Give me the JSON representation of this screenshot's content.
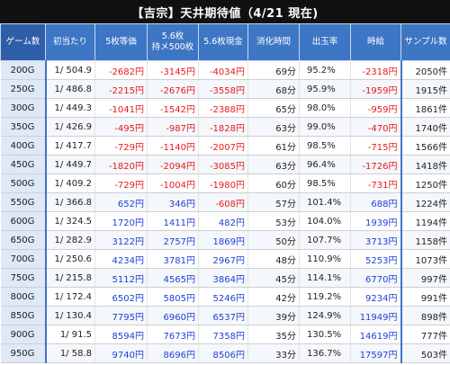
{
  "title": "【吉宗】天井期待値（4/21 現在)",
  "headers": {
    "game": "ゲーム数",
    "rate": "初当たり",
    "v5": "5枚等価",
    "v56_line1": "5.6枚",
    "v56_line2": "持メ500枚",
    "v56cash": "5.6枚現金",
    "time": "消化時間",
    "payout": "出玉率",
    "hourly": "時給",
    "samples": "サンプル数"
  },
  "colors": {
    "header": "#3d76c4",
    "negative": "#e8191b",
    "positive": "#1f3fd6"
  },
  "rows": [
    {
      "game": "200G",
      "rate": "1/ 504.9",
      "v5": "-2682円",
      "v56": "-3145円",
      "v56c": "-4034円",
      "time": "69分",
      "payout": "95.2%",
      "hourly": "-2318円",
      "samples": "2050件"
    },
    {
      "game": "250G",
      "rate": "1/ 486.8",
      "v5": "-2215円",
      "v56": "-2676円",
      "v56c": "-3558円",
      "time": "68分",
      "payout": "95.9%",
      "hourly": "-1959円",
      "samples": "1915件"
    },
    {
      "game": "300G",
      "rate": "1/ 449.3",
      "v5": "-1041円",
      "v56": "-1542円",
      "v56c": "-2388円",
      "time": "65分",
      "payout": "98.0%",
      "hourly": "-959円",
      "samples": "1861件"
    },
    {
      "game": "350G",
      "rate": "1/ 426.9",
      "v5": "-495円",
      "v56": "-987円",
      "v56c": "-1828円",
      "time": "63分",
      "payout": "99.0%",
      "hourly": "-470円",
      "samples": "1740件"
    },
    {
      "game": "400G",
      "rate": "1/ 417.7",
      "v5": "-729円",
      "v56": "-1140円",
      "v56c": "-2007円",
      "time": "61分",
      "payout": "98.5%",
      "hourly": "-715円",
      "samples": "1566件"
    },
    {
      "game": "450G",
      "rate": "1/ 449.7",
      "v5": "-1820円",
      "v56": "-2094円",
      "v56c": "-3085円",
      "time": "63分",
      "payout": "96.4%",
      "hourly": "-1726円",
      "samples": "1418件"
    },
    {
      "game": "500G",
      "rate": "1/ 409.2",
      "v5": "-729円",
      "v56": "-1004円",
      "v56c": "-1980円",
      "time": "60分",
      "payout": "98.5%",
      "hourly": "-731円",
      "samples": "1250件"
    },
    {
      "game": "550G",
      "rate": "1/ 366.8",
      "v5": "652円",
      "v56": "346円",
      "v56c": "-608円",
      "time": "57分",
      "payout": "101.4%",
      "hourly": "688円",
      "samples": "1224件"
    },
    {
      "game": "600G",
      "rate": "1/ 324.5",
      "v5": "1720円",
      "v56": "1411円",
      "v56c": "482円",
      "time": "53分",
      "payout": "104.0%",
      "hourly": "1939円",
      "samples": "1194件"
    },
    {
      "game": "650G",
      "rate": "1/ 282.9",
      "v5": "3122円",
      "v56": "2757円",
      "v56c": "1869円",
      "time": "50分",
      "payout": "107.7%",
      "hourly": "3713円",
      "samples": "1158件"
    },
    {
      "game": "700G",
      "rate": "1/ 250.6",
      "v5": "4234円",
      "v56": "3781円",
      "v56c": "2967円",
      "time": "48分",
      "payout": "110.9%",
      "hourly": "5253円",
      "samples": "1073件"
    },
    {
      "game": "750G",
      "rate": "1/ 215.8",
      "v5": "5112円",
      "v56": "4565円",
      "v56c": "3864円",
      "time": "45分",
      "payout": "114.1%",
      "hourly": "6770円",
      "samples": "997件"
    },
    {
      "game": "800G",
      "rate": "1/ 172.4",
      "v5": "6502円",
      "v56": "5805円",
      "v56c": "5246円",
      "time": "42分",
      "payout": "119.2%",
      "hourly": "9234円",
      "samples": "991件"
    },
    {
      "game": "850G",
      "rate": "1/ 130.4",
      "v5": "7795円",
      "v56": "6960円",
      "v56c": "6537円",
      "time": "39分",
      "payout": "124.9%",
      "hourly": "11949円",
      "samples": "898件"
    },
    {
      "game": "900G",
      "rate": "1/ 91.5",
      "v5": "8594円",
      "v56": "7673円",
      "v56c": "7358円",
      "time": "35分",
      "payout": "130.5%",
      "hourly": "14619円",
      "samples": "777件"
    },
    {
      "game": "950G",
      "rate": "1/ 58.8",
      "v5": "9740円",
      "v56": "8696円",
      "v56c": "8506円",
      "time": "33分",
      "payout": "136.7%",
      "hourly": "17597円",
      "samples": "503件"
    }
  ]
}
